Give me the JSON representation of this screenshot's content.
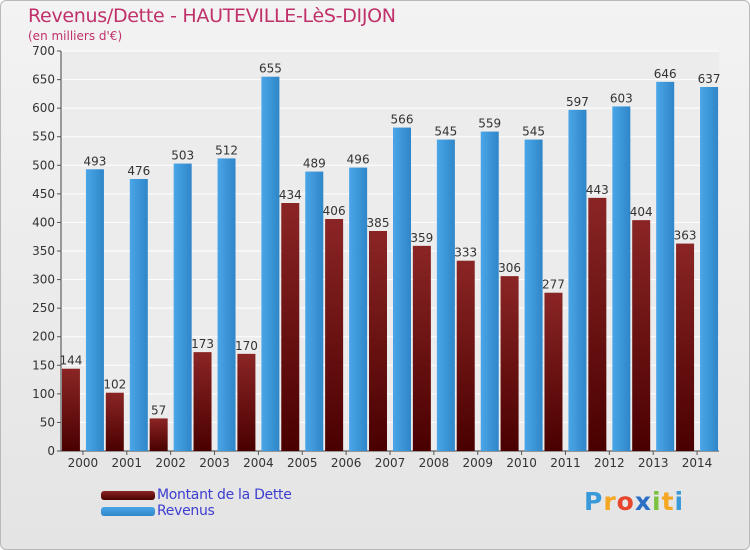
{
  "header": {
    "title": "Revenus/Dette - HAUTEVILLE-LèS-DIJON",
    "subtitle": "(en milliers d'€)"
  },
  "brand": {
    "text": "Proxiti",
    "letters": [
      "P",
      "r",
      "o",
      "x",
      "i",
      "t",
      "i"
    ],
    "colors": [
      "#3a9ad9",
      "#f5a623",
      "#e8452c",
      "#2b6fc4",
      "#7cc242",
      "#f5a623",
      "#3a9ad9"
    ]
  },
  "chart_data": {
    "type": "bar",
    "title": "Revenus/Dette - HAUTEVILLE-LèS-DIJON",
    "ylabel": "(en milliers d'€)",
    "xlabel": "",
    "categories": [
      "2000",
      "2001",
      "2002",
      "2003",
      "2004",
      "2005",
      "2006",
      "2007",
      "2008",
      "2009",
      "2010",
      "2011",
      "2012",
      "2013",
      "2014"
    ],
    "series": [
      {
        "name": "Montant de la Dette",
        "color": "#7a1a1a",
        "values": [
          144,
          102,
          57,
          173,
          170,
          434,
          406,
          385,
          359,
          333,
          306,
          277,
          443,
          404,
          363
        ]
      },
      {
        "name": "Revenus",
        "color": "#3d9ee2",
        "values": [
          493,
          476,
          503,
          512,
          655,
          489,
          496,
          566,
          545,
          559,
          545,
          597,
          603,
          646,
          637
        ]
      }
    ],
    "ylim": [
      0,
      700
    ],
    "yticks": [
      0,
      50,
      100,
      150,
      200,
      250,
      300,
      350,
      400,
      450,
      500,
      550,
      600,
      650,
      700
    ],
    "grid": true,
    "legend": "bottom-left"
  }
}
